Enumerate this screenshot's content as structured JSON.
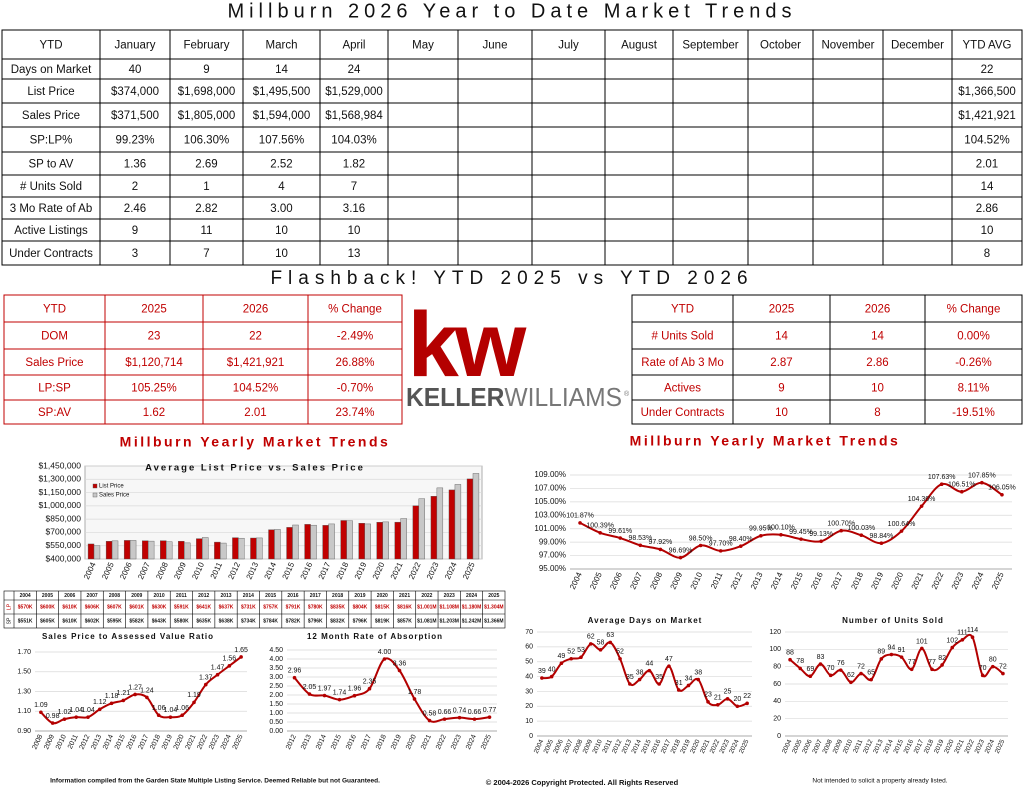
{
  "title": "Millburn 2026 Year to Date Market Trends",
  "ytd_table": {
    "header": [
      "YTD",
      "January",
      "February",
      "March",
      "April",
      "May",
      "June",
      "July",
      "August",
      "September",
      "October",
      "November",
      "December",
      "YTD AVG"
    ],
    "rows": [
      {
        "label": "Days on Market",
        "values": [
          "40",
          "9",
          "14",
          "24"
        ],
        "avg": "22"
      },
      {
        "label": "List Price",
        "values": [
          "$374,000",
          "$1,698,000",
          "$1,495,500",
          "$1,529,000"
        ],
        "avg": "$1,366,500"
      },
      {
        "label": "Sales Price",
        "values": [
          "$371,500",
          "$1,805,000",
          "$1,594,000",
          "$1,568,984"
        ],
        "avg": "$1,421,921"
      },
      {
        "label": "SP:LP%",
        "values": [
          "99.23%",
          "106.30%",
          "107.56%",
          "104.03%"
        ],
        "avg": "104.52%"
      },
      {
        "label": "SP to AV",
        "values": [
          "1.36",
          "2.69",
          "2.52",
          "1.82"
        ],
        "avg": "2.01"
      },
      {
        "label": "# Units Sold",
        "values": [
          "2",
          "1",
          "4",
          "7"
        ],
        "avg": "14"
      },
      {
        "label": "3 Mo Rate of Ab",
        "values": [
          "2.46",
          "2.82",
          "3.00",
          "3.16"
        ],
        "avg": "2.86"
      },
      {
        "label": "Active Listings",
        "values": [
          "9",
          "11",
          "10",
          "10"
        ],
        "avg": "10"
      },
      {
        "label": "Under Contracts",
        "values": [
          "3",
          "7",
          "10",
          "13"
        ],
        "avg": "8"
      }
    ]
  },
  "flashback": {
    "title": "Flashback!  YTD 2025 vs YTD 2026",
    "color": "#c00000",
    "left": {
      "header": [
        "YTD",
        "2025",
        "2026",
        "% Change"
      ],
      "rows": [
        [
          "DOM",
          "23",
          "22",
          "-2.49%"
        ],
        [
          "Sales Price",
          "$1,120,714",
          "$1,421,921",
          "26.88%"
        ],
        [
          "LP:SP",
          "105.25%",
          "104.52%",
          "-0.70%"
        ],
        [
          "SP:AV",
          "1.62",
          "2.01",
          "23.74%"
        ]
      ]
    },
    "right": {
      "header": [
        "YTD",
        "2025",
        "2026",
        "% Change"
      ],
      "rows": [
        [
          "# Units Sold",
          "14",
          "14",
          "0.00%"
        ],
        [
          "Rate of Ab 3 Mo",
          "2.87",
          "2.86",
          "-0.26%"
        ],
        [
          "Actives",
          "9",
          "10",
          "8.11%"
        ],
        [
          "Under Contracts",
          "10",
          "8",
          "-19.51%"
        ]
      ]
    }
  },
  "logo": {
    "mark": "kw",
    "keller": "KELLER",
    "williams": "WILLIAMS",
    "registered": "®"
  },
  "sections": [
    "Millburn Yearly Market Trends",
    "Millburn Yearly Market Trends"
  ],
  "chart_data": [
    {
      "type": "bar",
      "title": "Average List Price vs. Sales Price",
      "categories": [
        "2004",
        "2005",
        "2006",
        "2007",
        "2008",
        "2009",
        "2010",
        "2011",
        "2012",
        "2013",
        "2014",
        "2015",
        "2016",
        "2017",
        "2018",
        "2019",
        "2020",
        "2021",
        "2022",
        "2023",
        "2024",
        "2025"
      ],
      "table_row_labels": [
        "LP",
        "SP"
      ],
      "series": [
        {
          "name": "List Price",
          "color": "#c00000",
          "values": [
            570000,
            600000,
            610000,
            606000,
            607000,
            601000,
            630000,
            591000,
            641000,
            637000,
            731000,
            757000,
            791000,
            780000,
            835000,
            804000,
            815000,
            816000,
            1001000,
            1108000,
            1180000,
            1304000
          ],
          "value_labels": [
            "$570K",
            "$600K",
            "$610K",
            "$606K",
            "$607K",
            "$601K",
            "$630K",
            "$591K",
            "$641K",
            "$637K",
            "$731K",
            "$757K",
            "$791K",
            "$780K",
            "$835K",
            "$804K",
            "$815K",
            "$816K",
            "$1.001M",
            "$1.108M",
            "$1.180M",
            "$1.304M"
          ]
        },
        {
          "name": "Sales Price",
          "color": "#c8c8c8",
          "values": [
            551000,
            605000,
            610000,
            602000,
            595000,
            582000,
            643000,
            580000,
            635000,
            638000,
            734000,
            784000,
            782000,
            796000,
            832000,
            796000,
            819000,
            857000,
            1081000,
            1203000,
            1242000,
            1366000
          ],
          "value_labels": [
            "$551K",
            "$605K",
            "$610K",
            "$602K",
            "$595K",
            "$582K",
            "$643K",
            "$580K",
            "$635K",
            "$638K",
            "$734K",
            "$784K",
            "$782K",
            "$796K",
            "$832K",
            "$796K",
            "$819K",
            "$857K",
            "$1.081M",
            "$1.203M",
            "$1.242M",
            "$1.366M"
          ]
        }
      ],
      "ylim": [
        400000,
        1450000
      ],
      "yticks": [
        {
          "value": 400000,
          "label": "$400,000"
        },
        {
          "value": 550000,
          "label": "$550,000"
        },
        {
          "value": 700000,
          "label": "$700,000"
        },
        {
          "value": 850000,
          "label": "$850,000"
        },
        {
          "value": 1000000,
          "label": "$1,000,000"
        },
        {
          "value": 1150000,
          "label": "$1,150,000"
        },
        {
          "value": 1300000,
          "label": "$1,300,000"
        },
        {
          "value": 1450000,
          "label": "$1,450,000"
        }
      ],
      "grid": true
    },
    {
      "type": "line",
      "title": "Sales Price to Assessed Value Ratio",
      "color": "#b30000",
      "categories": [
        "2008",
        "2009",
        "2010",
        "2011",
        "2012",
        "2013",
        "2014",
        "2015",
        "2016",
        "2017",
        "2018",
        "2019",
        "2020",
        "2021",
        "2022",
        "2023",
        "2024",
        "2025"
      ],
      "values": [
        1.09,
        0.98,
        1.02,
        1.04,
        1.04,
        1.12,
        1.18,
        1.21,
        1.27,
        1.24,
        1.06,
        1.04,
        1.06,
        1.19,
        1.37,
        1.47,
        1.56,
        1.65
      ],
      "ylim": [
        0.9,
        1.7
      ],
      "yticks": [
        {
          "value": 0.9,
          "label": "0.90"
        },
        {
          "value": 1.1,
          "label": "1.10"
        },
        {
          "value": 1.3,
          "label": "1.30"
        },
        {
          "value": 1.5,
          "label": "1.50"
        },
        {
          "value": 1.7,
          "label": "1.70"
        }
      ],
      "grid": true
    },
    {
      "type": "line",
      "title": "12 Month Rate of Absorption",
      "color": "#b30000",
      "categories": [
        "2012",
        "2013",
        "2014",
        "2015",
        "2016",
        "2017",
        "2018",
        "2019",
        "2020",
        "2021",
        "2022",
        "2023",
        "2024",
        "2025"
      ],
      "values": [
        2.96,
        2.05,
        1.97,
        1.74,
        1.96,
        2.35,
        4,
        3.36,
        1.78,
        0.58,
        0.66,
        0.74,
        0.66,
        0.77
      ],
      "value_labels": [
        "2.96",
        "2.05",
        "1.97",
        "1.74",
        "1.96",
        "2.35",
        "4.00",
        "3.36",
        "1.78",
        "0.58",
        "0.66",
        "0.74",
        "0.66",
        "0.77"
      ],
      "ylim": [
        0,
        4.5
      ],
      "yticks": [
        {
          "value": 0,
          "label": "0.00"
        },
        {
          "value": 0.5,
          "label": "0.50"
        },
        {
          "value": 1,
          "label": "1.00"
        },
        {
          "value": 1.5,
          "label": "1.50"
        },
        {
          "value": 2,
          "label": "2.00"
        },
        {
          "value": 2.5,
          "label": "2.50"
        },
        {
          "value": 3,
          "label": "3.00"
        },
        {
          "value": 3.5,
          "label": "3.50"
        },
        {
          "value": 4,
          "label": "4.00"
        },
        {
          "value": 4.5,
          "label": "4.50"
        }
      ],
      "grid": true
    },
    {
      "type": "line",
      "color": "#b30000",
      "categories": [
        "2004",
        "2005",
        "2006",
        "2007",
        "2008",
        "2009",
        "2010",
        "2011",
        "2012",
        "2013",
        "2014",
        "2015",
        "2016",
        "2017",
        "2018",
        "2019",
        "2020",
        "2021",
        "2022",
        "2023",
        "2024",
        "2025"
      ],
      "values": [
        101.87,
        100.39,
        99.61,
        98.53,
        97.92,
        96.69,
        98.5,
        97.7,
        98.4,
        99.95,
        100.1,
        99.45,
        99.13,
        100.7,
        100.03,
        98.84,
        100.64,
        104.36,
        107.63,
        106.51,
        107.85,
        106.05
      ],
      "value_labels": [
        "101.87%",
        "100.39%",
        "99.61%",
        "98.53%",
        "97.92%",
        "96.69%",
        "98.50%",
        "97.70%",
        "98.40%",
        "99.95%",
        "100.10%",
        "99.45%",
        "99.13%",
        "100.70%",
        "100.03%",
        "98.84%",
        "100.64%",
        "104.36%",
        "107.63%",
        "106.51%",
        "107.85%",
        "106.05%"
      ],
      "ylim": [
        95,
        109
      ],
      "yticks": [
        {
          "value": 95,
          "label": "95.00%"
        },
        {
          "value": 97,
          "label": "97.00%"
        },
        {
          "value": 99,
          "label": "99.00%"
        },
        {
          "value": 101,
          "label": "101.00%"
        },
        {
          "value": 103,
          "label": "103.00%"
        },
        {
          "value": 105,
          "label": "105.00%"
        },
        {
          "value": 107,
          "label": "107.00%"
        },
        {
          "value": 109,
          "label": "109.00%"
        }
      ],
      "grid": true
    },
    {
      "type": "line",
      "title": "Average Days on Market",
      "color": "#b30000",
      "categories": [
        "2004",
        "2005",
        "2006",
        "2007",
        "2008",
        "2009",
        "2010",
        "2011",
        "2012",
        "2013",
        "2014",
        "2015",
        "2016",
        "2017",
        "2018",
        "2019",
        "2020",
        "2021",
        "2022",
        "2023",
        "2024",
        "2025"
      ],
      "values": [
        39,
        40,
        49,
        52,
        53,
        62,
        58,
        63,
        52,
        35,
        38,
        44,
        35,
        47,
        31,
        34,
        38,
        23,
        21,
        25,
        20,
        22
      ],
      "ylim": [
        0,
        70
      ],
      "yticks": [
        0,
        10,
        20,
        30,
        40,
        50,
        60,
        70
      ],
      "grid": true
    },
    {
      "type": "line",
      "title": "Number of Units Sold",
      "color": "#b30000",
      "categories": [
        "2004",
        "2005",
        "2006",
        "2007",
        "2008",
        "2009",
        "2010",
        "2011",
        "2012",
        "2013",
        "2014",
        "2015",
        "2016",
        "2017",
        "2018",
        "2019",
        "2020",
        "2021",
        "2022",
        "2023",
        "2024",
        "2025"
      ],
      "values": [
        88,
        78,
        69,
        83,
        70,
        76,
        62,
        72,
        65,
        89,
        94,
        91,
        77,
        101,
        77,
        82,
        102,
        111,
        114,
        70,
        80,
        72
      ],
      "ylim": [
        0,
        120
      ],
      "yticks": [
        0,
        20,
        40,
        60,
        80,
        100,
        120
      ],
      "grid": true
    }
  ],
  "footer": {
    "left": "Information compiled from the Garden State Multiple Listing Service.  Deemed Reliable but not Guaranteed.",
    "center": "© 2004-2026 Copyright Protected.  All Rights Reserved",
    "right": "Not intended to solicit a property already listed."
  }
}
